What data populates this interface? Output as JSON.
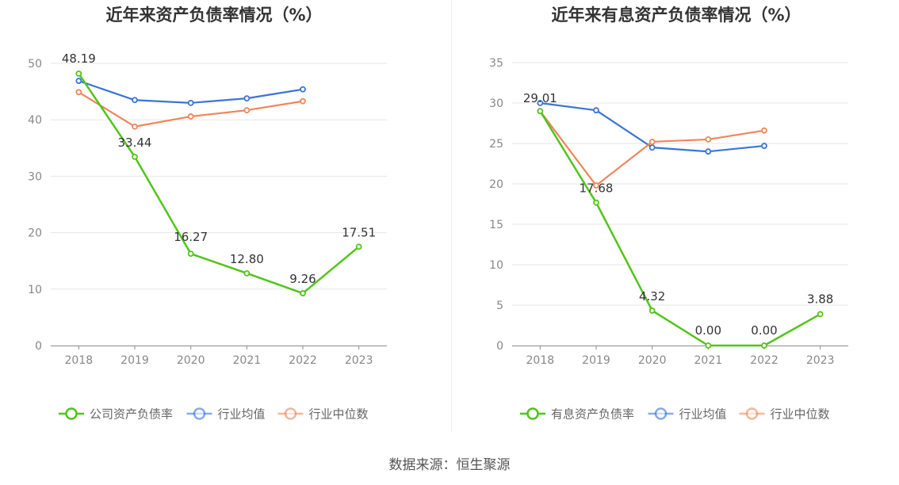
{
  "source": "数据来源：恒生聚源",
  "colors": {
    "company": "#52c41a",
    "avg": "#3a74d9",
    "median": "#f0865a",
    "grid": "#e6e6e6",
    "axis": "#8c8c8c",
    "tick": "#888888",
    "title": "#333333",
    "label": "#333333",
    "legend_text": "#666666"
  },
  "chart_data": [
    {
      "type": "line",
      "title": "近年来资产负债率情况（%）",
      "categories": [
        "2018",
        "2019",
        "2020",
        "2021",
        "2022",
        "2023"
      ],
      "ylim": [
        0,
        50
      ],
      "yticks": [
        0,
        10,
        20,
        30,
        40,
        50
      ],
      "grid": true,
      "legend": "bottom",
      "series": [
        {
          "name": "公司资产负债率",
          "role": "company",
          "values": [
            48.19,
            33.44,
            16.27,
            12.8,
            9.26,
            17.51
          ],
          "labels": [
            "48.19",
            "33.44",
            "16.27",
            "12.80",
            "9.26",
            "17.51"
          ]
        },
        {
          "name": "行业均值",
          "role": "avg",
          "values": [
            46.9,
            43.5,
            43.0,
            43.8,
            45.4,
            null
          ]
        },
        {
          "name": "行业中位数",
          "role": "median",
          "values": [
            44.9,
            38.8,
            40.6,
            41.7,
            43.3,
            null
          ]
        }
      ]
    },
    {
      "type": "line",
      "title": "近年来有息资产负债率情况（%）",
      "categories": [
        "2018",
        "2019",
        "2020",
        "2021",
        "2022",
        "2023"
      ],
      "ylim": [
        0,
        35
      ],
      "yticks": [
        0,
        5,
        10,
        15,
        20,
        25,
        30,
        35
      ],
      "grid": true,
      "legend": "bottom",
      "series": [
        {
          "name": "有息资产负债率",
          "role": "company",
          "values": [
            29.01,
            17.68,
            4.32,
            0.0,
            0.0,
            3.88
          ],
          "labels": [
            "29.01",
            "17.68",
            "4.32",
            "0.00",
            "0.00",
            "3.88"
          ]
        },
        {
          "name": "行业均值",
          "role": "avg",
          "values": [
            30.0,
            29.1,
            24.5,
            24.0,
            24.7,
            null
          ]
        },
        {
          "name": "行业中位数",
          "role": "median",
          "values": [
            29.0,
            19.8,
            25.2,
            25.5,
            26.6,
            null
          ]
        }
      ]
    }
  ]
}
